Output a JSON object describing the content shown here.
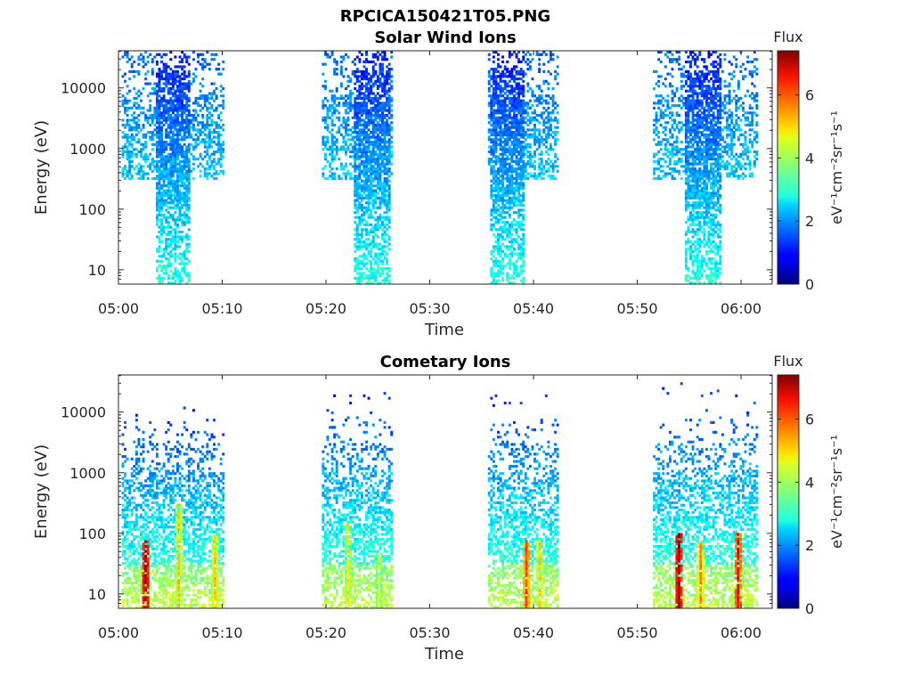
{
  "figure_title": "RPCICA150421T05.PNG",
  "chart_data": [
    {
      "type": "heatmap",
      "title": "Solar Wind Ions",
      "xlabel": "Time",
      "ylabel": "Energy (eV)",
      "y_scale": "log",
      "y_range_eV": [
        5.8,
        41000
      ],
      "y_ticks": [
        10,
        100,
        1000,
        10000
      ],
      "y_tick_labels": [
        "10",
        "100",
        "1000",
        "10000"
      ],
      "x_range": [
        "05:00",
        "06:03"
      ],
      "x_ticks": [
        "05:00",
        "05:10",
        "05:20",
        "05:30",
        "05:40",
        "05:50",
        "06:00"
      ],
      "colorbar": {
        "label": "Flux",
        "units": "eV⁻¹cm⁻²sr⁻¹s⁻¹",
        "range": [
          0,
          7.4
        ],
        "ticks": [
          "0",
          "2",
          "4",
          "6"
        ],
        "colormap": "jet"
      },
      "bursts": [
        {
          "start_min": 0.3,
          "end_min": 10.0,
          "core_start_min": 3.5,
          "core_end_min": 6.8,
          "core_min_eV": 6,
          "wing_min_eV": 300,
          "max_eV": 40000,
          "peak_eV": 3000
        },
        {
          "start_min": 19.6,
          "end_min": 26.2,
          "core_start_min": 22.6,
          "core_end_min": 26.0,
          "core_min_eV": 6,
          "wing_min_eV": 300,
          "max_eV": 40000,
          "peak_eV": 3000
        },
        {
          "start_min": 35.6,
          "end_min": 42.3,
          "core_start_min": 35.8,
          "core_end_min": 39.0,
          "core_min_eV": 6,
          "wing_min_eV": 300,
          "max_eV": 40000,
          "peak_eV": 3000
        },
        {
          "start_min": 51.5,
          "end_min": 61.6,
          "core_start_min": 54.5,
          "core_end_min": 58.0,
          "core_min_eV": 6,
          "wing_min_eV": 300,
          "max_eV": 40000,
          "peak_eV": 3000
        }
      ]
    },
    {
      "type": "heatmap",
      "title": "Cometary Ions",
      "xlabel": "Time",
      "ylabel": "Energy (eV)",
      "y_scale": "log",
      "y_range_eV": [
        5.8,
        41000
      ],
      "y_ticks": [
        10,
        100,
        1000,
        10000
      ],
      "y_tick_labels": [
        "10",
        "100",
        "1000",
        "10000"
      ],
      "x_range": [
        "05:00",
        "06:03"
      ],
      "x_ticks": [
        "05:00",
        "05:10",
        "05:20",
        "05:30",
        "05:40",
        "05:50",
        "06:00"
      ],
      "colorbar": {
        "label": "Flux",
        "units": "eV⁻¹cm⁻²sr⁻¹s⁻¹",
        "range": [
          0,
          7.4
        ],
        "ticks": [
          "0",
          "2",
          "4",
          "6"
        ],
        "colormap": "jet"
      },
      "bursts": [
        {
          "start_min": 0.3,
          "end_min": 10.0,
          "max_eV": 15000
        },
        {
          "start_min": 19.6,
          "end_min": 26.2,
          "max_eV": 28000
        },
        {
          "start_min": 35.6,
          "end_min": 42.3,
          "max_eV": 26000
        },
        {
          "start_min": 51.5,
          "end_min": 61.6,
          "max_eV": 35000
        }
      ],
      "hot_streaks": [
        {
          "time_min": 2.5,
          "level": 7.2,
          "top_eV": 80
        },
        {
          "time_min": 5.7,
          "level": 5.0,
          "top_eV": 300
        },
        {
          "time_min": 9.2,
          "level": 5.0,
          "top_eV": 90
        },
        {
          "time_min": 22.0,
          "level": 4.8,
          "top_eV": 150
        },
        {
          "time_min": 25.0,
          "level": 4.5,
          "top_eV": 50
        },
        {
          "time_min": 39.2,
          "level": 6.0,
          "top_eV": 80
        },
        {
          "time_min": 40.5,
          "level": 5.0,
          "top_eV": 80
        },
        {
          "time_min": 53.9,
          "level": 7.2,
          "top_eV": 100
        },
        {
          "time_min": 56.0,
          "level": 5.5,
          "top_eV": 70
        },
        {
          "time_min": 59.6,
          "level": 6.5,
          "top_eV": 100
        }
      ]
    }
  ]
}
